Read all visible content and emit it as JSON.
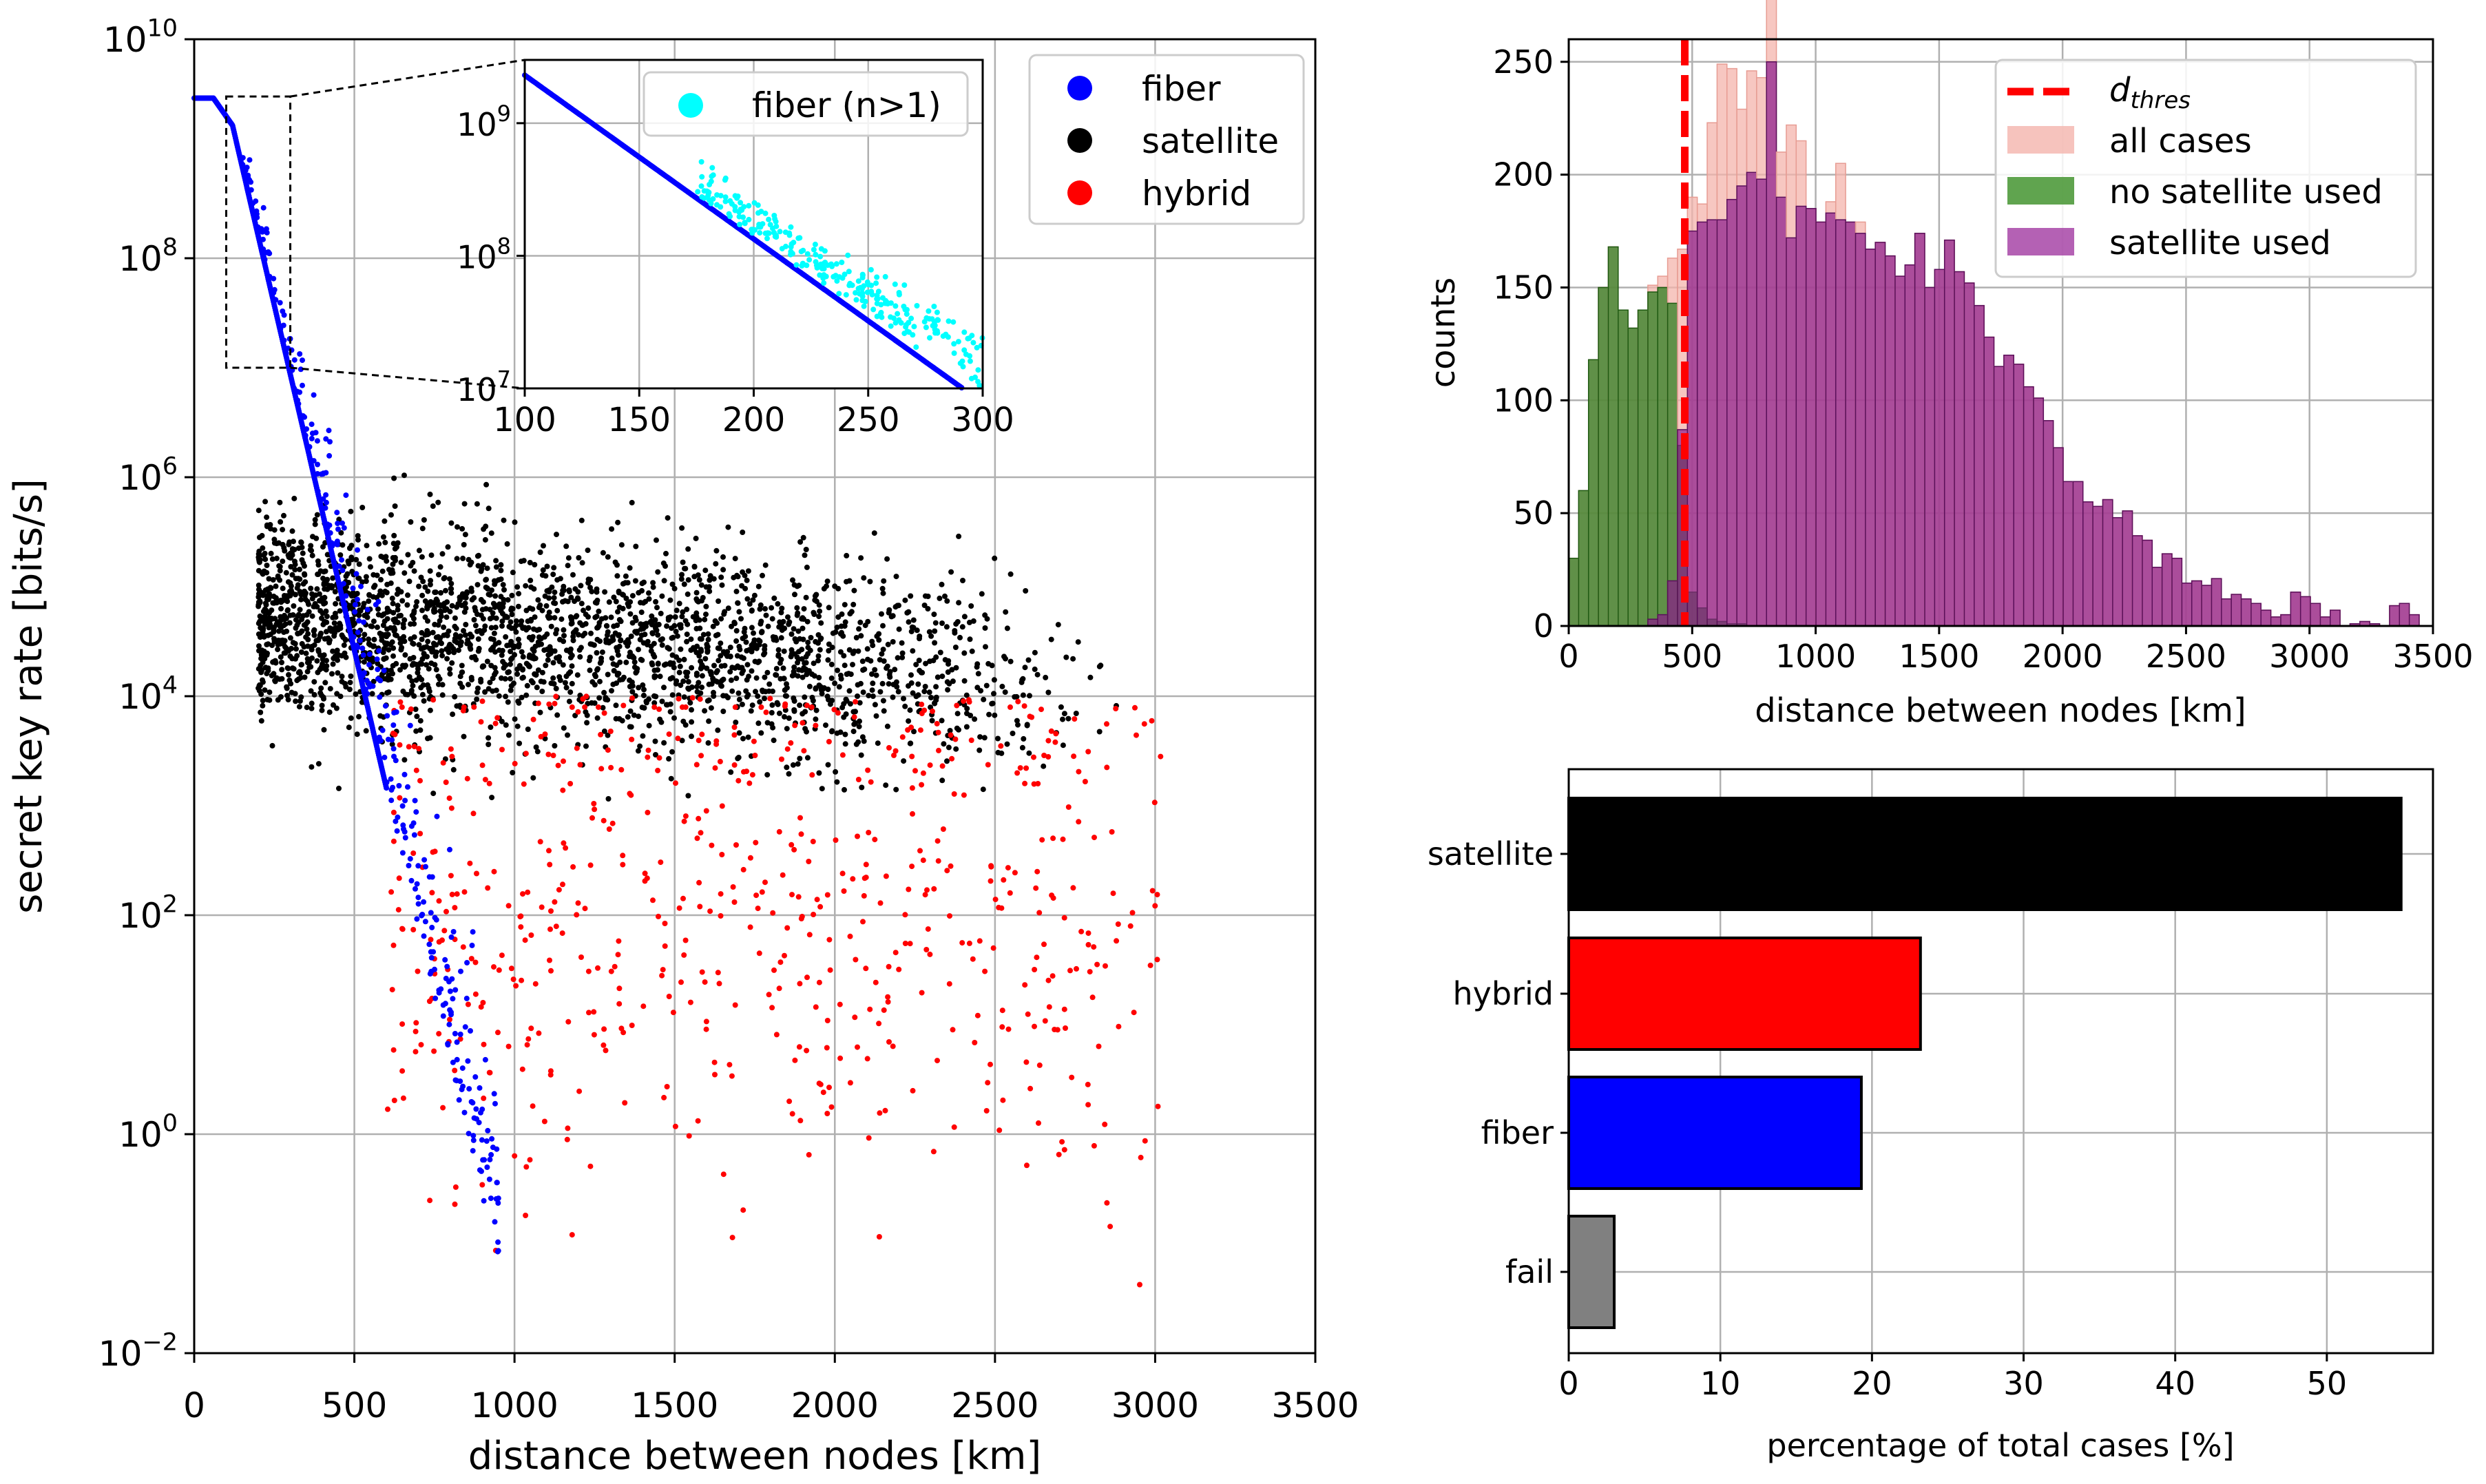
{
  "chart_data": [
    {
      "id": "scatter",
      "type": "scatter",
      "xlabel": "distance between nodes [km]",
      "ylabel": "secret key rate [bits/s]",
      "xlim": [
        0,
        3500
      ],
      "ylim_log10": [
        -2,
        10
      ],
      "xticks": [
        "0",
        "500",
        "1000",
        "1500",
        "2000",
        "2500",
        "3000",
        "3500"
      ],
      "yticks": [
        {
          "base": "10",
          "exp": "−2"
        },
        {
          "base": "10",
          "exp": "0"
        },
        {
          "base": "10",
          "exp": "2"
        },
        {
          "base": "10",
          "exp": "4"
        },
        {
          "base": "10",
          "exp": "6"
        },
        {
          "base": "10",
          "exp": "8"
        },
        {
          "base": "10",
          "exp": "10"
        }
      ],
      "series": [
        {
          "name": "fiber",
          "color": "#0000ff",
          "description": "rate ~2.9e9 flat to ~50 km, decays exponentially to 1e-2 near 950 km"
        },
        {
          "name": "satellite",
          "color": "#000000",
          "description": "100 to 2900 km, rates 1e3 to 1e6, mostly 1e4-1e5"
        },
        {
          "name": "hybrid",
          "color": "#ff0000",
          "description": "600 to 3000 km, rates 1e-2 to 1e4"
        }
      ],
      "legend": [
        "fiber",
        "satellite",
        "hybrid"
      ],
      "zoom_box": {
        "x": [
          100,
          300
        ],
        "y": [
          10000000.0,
          3000000000.0
        ]
      }
    },
    {
      "id": "inset",
      "type": "scatter",
      "xlim": [
        100,
        300
      ],
      "ylim": [
        10000000.0,
        3000000000.0
      ],
      "xticks": [
        "100",
        "150",
        "200",
        "250",
        "300"
      ],
      "yticks": [
        {
          "base": "10",
          "exp": "7"
        },
        {
          "base": "10",
          "exp": "8"
        },
        {
          "base": "10",
          "exp": "9"
        }
      ],
      "series": [
        {
          "name": "fiber",
          "color": "#0000ff"
        },
        {
          "name": "fiber (n>1)",
          "color": "#00ffff"
        }
      ],
      "legend": [
        "fiber (n>1)"
      ]
    },
    {
      "id": "histogram",
      "type": "bar",
      "xlabel": "distance between nodes [km]",
      "ylabel": "counts",
      "xlim": [
        0,
        3500
      ],
      "ylim": [
        0,
        260
      ],
      "xticks": [
        "0",
        "500",
        "1000",
        "1500",
        "2000",
        "2500",
        "3000",
        "3500"
      ],
      "yticks": [
        "0",
        "50",
        "100",
        "150",
        "200",
        "250"
      ],
      "bin_width": 50,
      "d_thres": 470,
      "legend": [
        {
          "label": "d",
          "sub": "thres",
          "type": "line",
          "color": "#ff0000"
        },
        {
          "label": "all cases",
          "type": "patch",
          "color": "#f4b4ac"
        },
        {
          "label": "no satellite used",
          "type": "patch",
          "color": "#4f9a3c"
        },
        {
          "label": "satellite used",
          "type": "patch",
          "color": "#9b2c9b"
        }
      ],
      "no_satellite_used": [
        30,
        60,
        118,
        150,
        168,
        140,
        132,
        140,
        148,
        150,
        143,
        80,
        15,
        8,
        3,
        2,
        1,
        1
      ],
      "satellite_used": [
        0,
        0,
        0,
        0,
        0,
        0,
        0,
        0,
        3,
        5,
        20,
        87,
        175,
        179,
        180,
        180,
        189,
        195,
        201,
        198,
        250,
        190,
        172,
        186,
        185,
        179,
        183,
        180,
        179,
        174,
        167,
        170,
        164,
        155,
        160,
        174,
        150,
        158,
        171,
        157,
        152,
        142,
        128,
        115,
        120,
        116,
        106,
        101,
        91,
        79,
        64,
        64,
        55,
        53,
        56,
        48,
        51,
        40,
        38,
        26,
        32,
        30,
        19,
        20,
        18,
        21,
        12,
        14,
        12,
        10,
        7,
        4,
        5,
        15,
        13,
        10,
        4,
        7,
        0,
        1,
        2,
        1,
        0,
        9,
        10,
        5
      ],
      "all_cases_extra": [
        0,
        0,
        0,
        0,
        0,
        0,
        0,
        0,
        0,
        0,
        0,
        0,
        0,
        0,
        40,
        67,
        57,
        33,
        45,
        45,
        53,
        20,
        50,
        29,
        0,
        0,
        5,
        25,
        0,
        5,
        0,
        0,
        0,
        0,
        0,
        0,
        0,
        0,
        0,
        0,
        0,
        0,
        0,
        0,
        0,
        0,
        0,
        0,
        0,
        0,
        0,
        0,
        0,
        0,
        0,
        0,
        0,
        0,
        0,
        0,
        0,
        0,
        0,
        0,
        0,
        0,
        0,
        0,
        0,
        0,
        0,
        0,
        0,
        0,
        0,
        0,
        0,
        0,
        0,
        0,
        0,
        0,
        0,
        0,
        0,
        0
      ]
    },
    {
      "id": "barh",
      "type": "bar",
      "orientation": "horizontal",
      "xlabel": "percentage of total cases [%]",
      "xlim": [
        0,
        57
      ],
      "xticks": [
        "0",
        "10",
        "20",
        "30",
        "40",
        "50"
      ],
      "categories": [
        "satellite",
        "hybrid",
        "fiber",
        "fail"
      ],
      "values": [
        54.9,
        23.2,
        19.3,
        3.0
      ],
      "colors": [
        "#000000",
        "#ff0000",
        "#0000ff",
        "#808080"
      ]
    }
  ]
}
